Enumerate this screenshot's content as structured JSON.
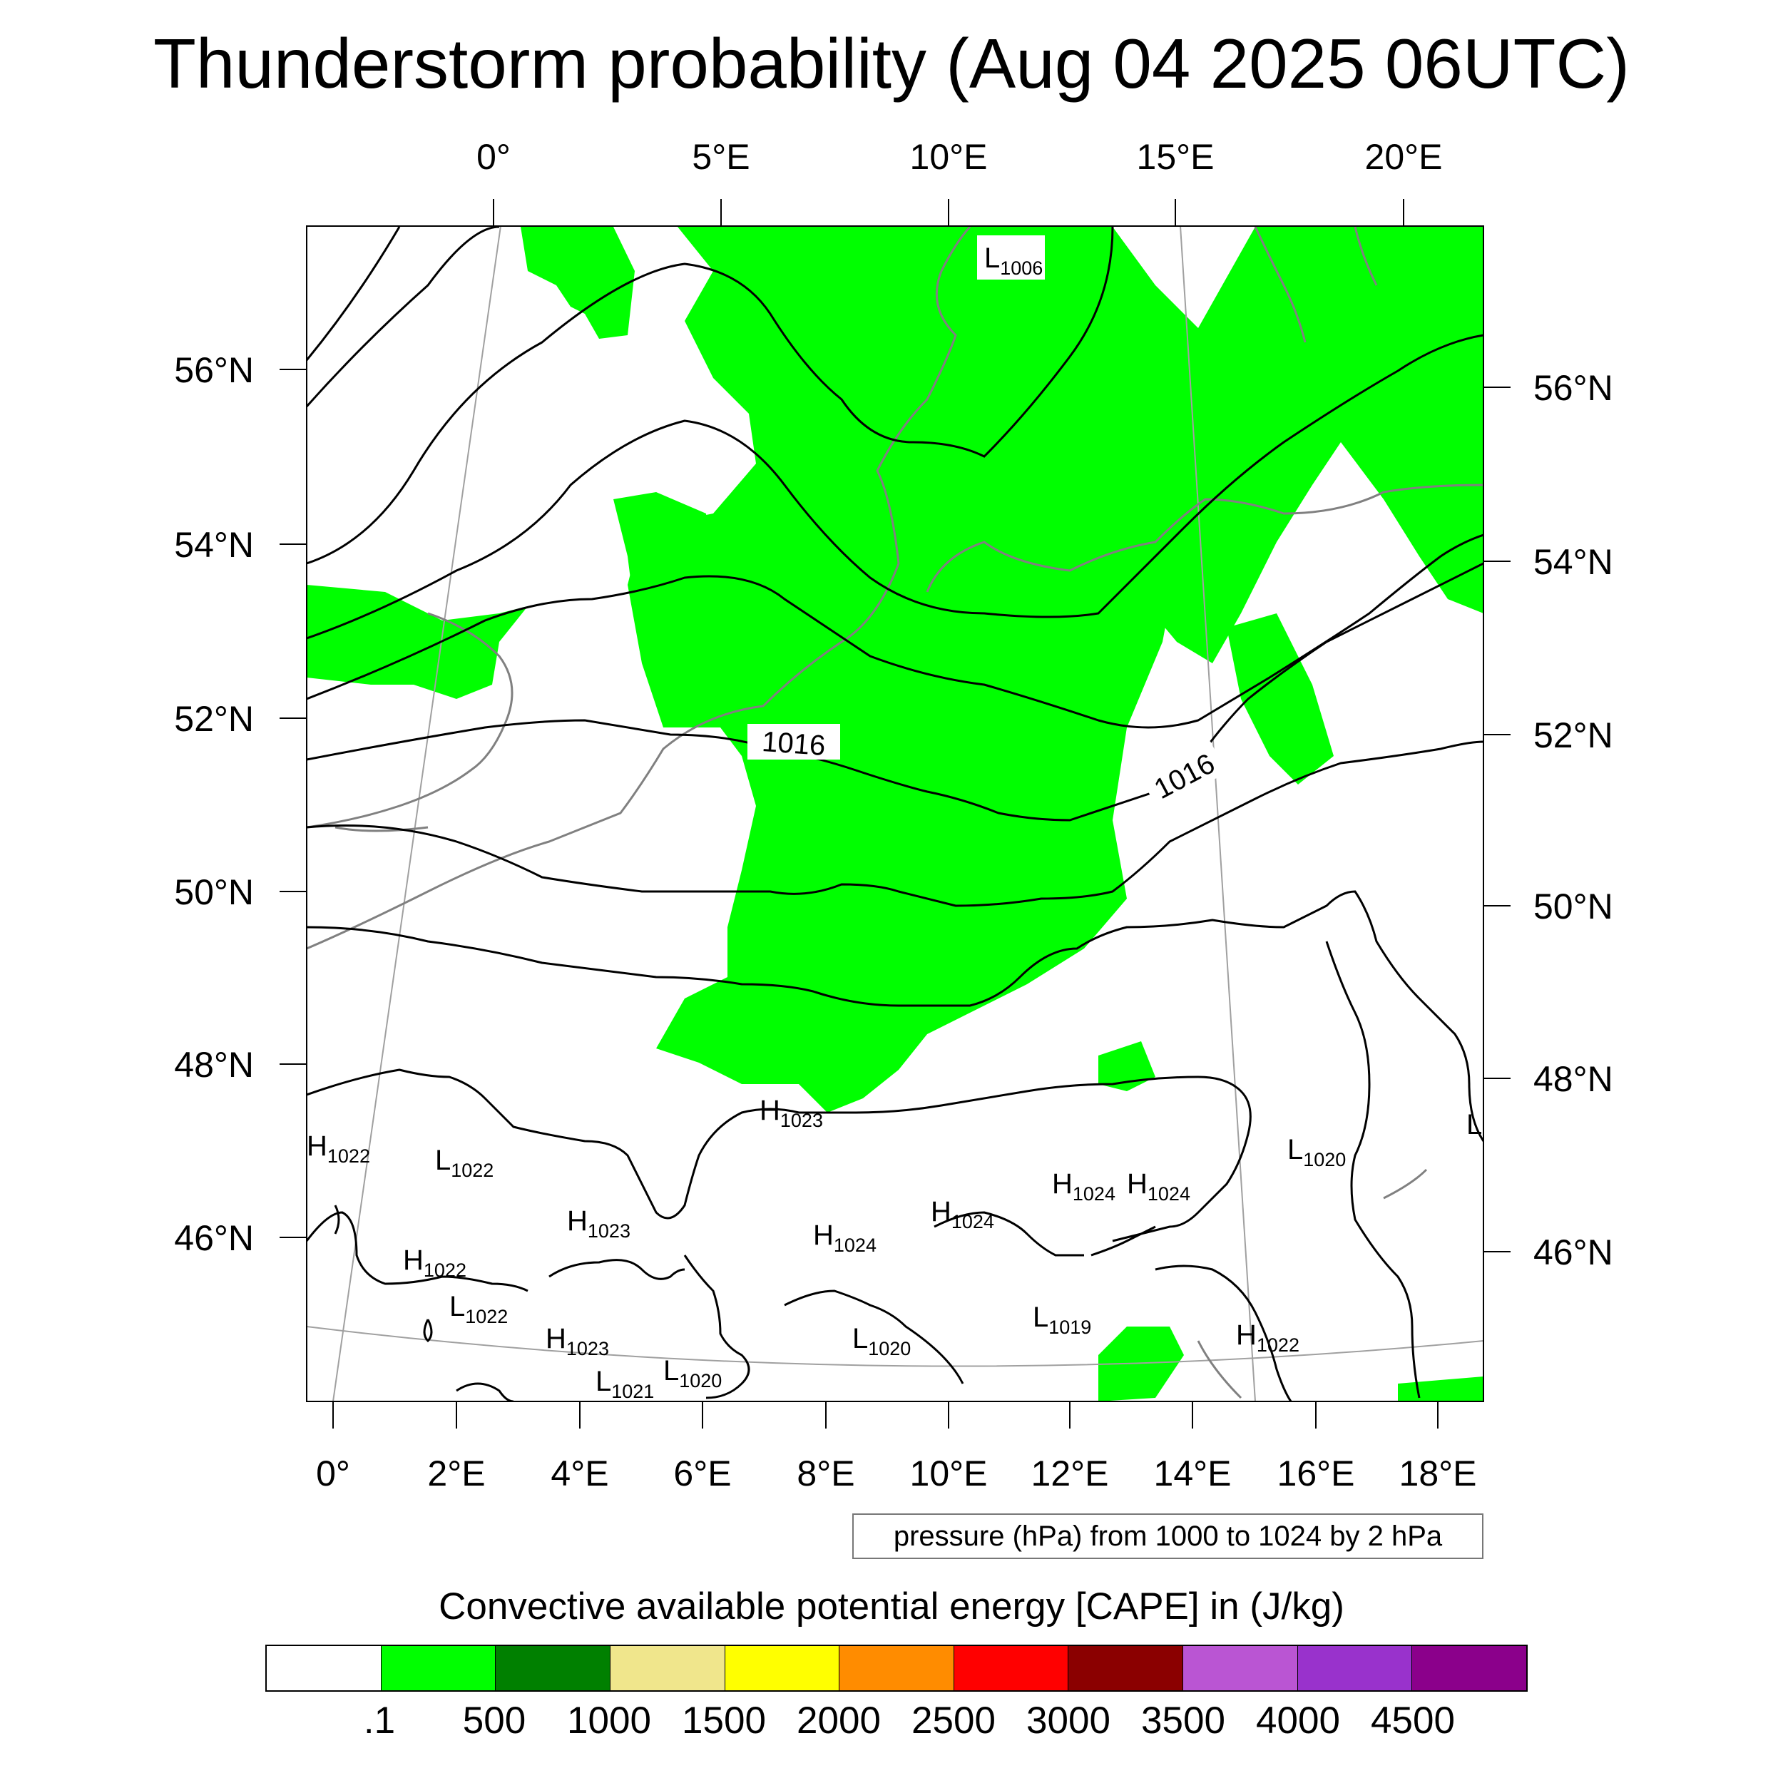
{
  "title": "Thunderstorm probability (Aug 04 2025 06UTC)",
  "top_lon_labels": [
    "0°",
    "5°E",
    "10°E",
    "15°E",
    "20°E"
  ],
  "bottom_lon_labels": [
    "0°",
    "2°E",
    "4°E",
    "6°E",
    "8°E",
    "10°E",
    "12°E",
    "14°E",
    "16°E",
    "18°E"
  ],
  "left_lat_labels": [
    "56°N",
    "54°N",
    "52°N",
    "50°N",
    "48°N",
    "46°N"
  ],
  "right_lat_labels": [
    "56°N",
    "54°N",
    "52°N",
    "50°N",
    "48°N",
    "46°N"
  ],
  "isobar_labels": [
    "1016",
    "1016"
  ],
  "pressure_centers": [
    {
      "type": "L",
      "value": "1006"
    },
    {
      "type": "H",
      "value": "1022"
    },
    {
      "type": "L",
      "value": "1022"
    },
    {
      "type": "H",
      "value": "1023"
    },
    {
      "type": "H",
      "value": "1023"
    },
    {
      "type": "H",
      "value": "1022"
    },
    {
      "type": "L",
      "value": "1022"
    },
    {
      "type": "H",
      "value": "1023"
    },
    {
      "type": "L",
      "value": "1021"
    },
    {
      "type": "L",
      "value": "1020"
    },
    {
      "type": "H",
      "value": "1024"
    },
    {
      "type": "H",
      "value": "1024"
    },
    {
      "type": "L",
      "value": "1020"
    },
    {
      "type": "H",
      "value": "1024"
    },
    {
      "type": "H",
      "value": "1024"
    },
    {
      "type": "L",
      "value": "1019"
    },
    {
      "type": "L",
      "value": "1020"
    },
    {
      "type": "H",
      "value": "1022"
    },
    {
      "type": "L",
      "value": ""
    }
  ],
  "pressure_info": "pressure (hPa) from 1000 to 1024 by 2 hPa",
  "cape_title": "Convective available potential energy [CAPE] in (J/kg)",
  "colorbar": {
    "colors": [
      "#ffffff",
      "#00ff00",
      "#008000",
      "#f0e68c",
      "#ffff00",
      "#ff8c00",
      "#ff0000",
      "#8b0000",
      "#ba55d3",
      "#9932cc",
      "#8b008b"
    ],
    "labels": [
      ".1",
      "500",
      "1000",
      "1500",
      "2000",
      "2500",
      "3000",
      "3500",
      "4000",
      "4500"
    ]
  },
  "colors": {
    "cape_fill": "#00ff00",
    "isobar": "#000000",
    "coast": "#808080",
    "grid": "#a0a0a0"
  }
}
